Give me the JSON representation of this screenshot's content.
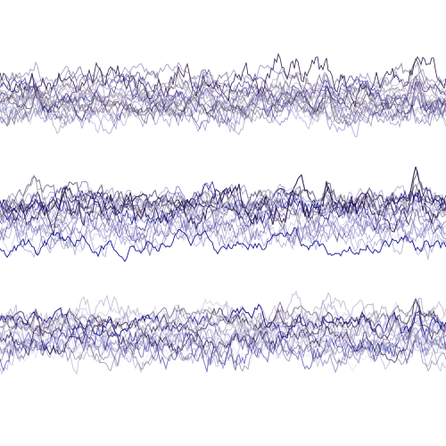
{
  "artwork": {
    "background": "#ffffff",
    "bands": [
      {
        "name": "top-band",
        "traces": 22
      },
      {
        "name": "middle-band",
        "traces": 22
      },
      {
        "name": "bottom-band",
        "traces": 22
      }
    ],
    "palette": [
      "#1a0a3a",
      "#0a0a8a",
      "#2b1b4b",
      "#5a4a9a",
      "#8c8cc8",
      "#b8b0c8",
      "#c8c8e8",
      "#9a90a0"
    ]
  }
}
